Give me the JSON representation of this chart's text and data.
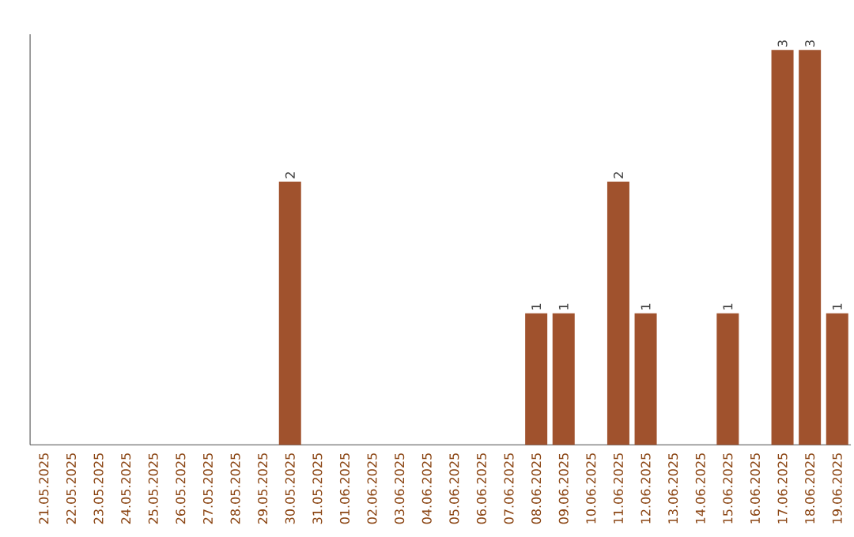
{
  "chart_data": {
    "type": "bar",
    "categories": [
      "21.05.2025",
      "22.05.2025",
      "23.05.2025",
      "24.05.2025",
      "25.05.2025",
      "26.05.2025",
      "27.05.2025",
      "28.05.2025",
      "29.05.2025",
      "30.05.2025",
      "31.05.2025",
      "01.06.2025",
      "02.06.2025",
      "03.06.2025",
      "04.06.2025",
      "05.06.2025",
      "06.06.2025",
      "07.06.2025",
      "08.06.2025",
      "09.06.2025",
      "10.06.2025",
      "11.06.2025",
      "12.06.2025",
      "13.06.2025",
      "14.06.2025",
      "15.06.2025",
      "16.06.2025",
      "17.06.2025",
      "18.06.2025",
      "19.06.2025"
    ],
    "values": [
      0,
      0,
      0,
      0,
      0,
      0,
      0,
      0,
      0,
      2,
      0,
      0,
      0,
      0,
      0,
      0,
      0,
      0,
      1,
      1,
      0,
      2,
      1,
      0,
      0,
      1,
      0,
      3,
      3,
      1
    ],
    "value_labels": [
      null,
      null,
      null,
      null,
      null,
      null,
      null,
      null,
      null,
      "2",
      null,
      null,
      null,
      null,
      null,
      null,
      null,
      null,
      "1",
      "1",
      null,
      "2",
      "1",
      null,
      null,
      "1",
      null,
      "3",
      "3",
      "1"
    ],
    "color": "#a0522d",
    "ylim": [
      0,
      3.12
    ],
    "tick_labels": "x",
    "grid": false
  }
}
